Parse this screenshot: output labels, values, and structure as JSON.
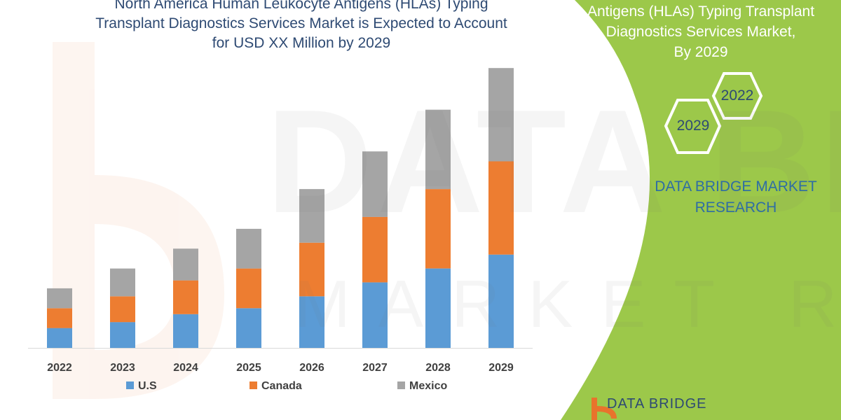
{
  "title_lines": [
    "North America Human Leukocyte Antigens (HLAs) Typing",
    "Transplant Diagnostics Services Market is Expected to Account",
    "for USD XX Million by 2029"
  ],
  "panel": {
    "title_lines": [
      "Antigens (HLAs) Typing Transplant",
      "Diagnostics Services Market,",
      "By 2029"
    ],
    "hex_left_label": "2029",
    "hex_right_label": "2022",
    "brand_lines": [
      "DATA BRIDGE MARKET",
      "RESEARCH"
    ],
    "footer_logo_text": "DATA BRIDGE",
    "colors": {
      "panel": "#9cc84a",
      "hex_outline": "#ffffff"
    }
  },
  "watermark": {
    "main": "DATA BRIDGE",
    "sub": "MARKET RESEARCH"
  },
  "chart_data": {
    "type": "bar",
    "stacked": true,
    "categories": [
      "2022",
      "2023",
      "2024",
      "2025",
      "2026",
      "2027",
      "2028",
      "2029"
    ],
    "series": [
      {
        "name": "U.S",
        "color": "#5b9bd5",
        "values": [
          10,
          13,
          17,
          20,
          26,
          33,
          40,
          47
        ]
      },
      {
        "name": "Canada",
        "color": "#ed7d31",
        "values": [
          10,
          13,
          17,
          20,
          27,
          33,
          40,
          47
        ]
      },
      {
        "name": "Mexico",
        "color": "#a5a5a5",
        "values": [
          10,
          14,
          16,
          20,
          27,
          33,
          40,
          47
        ]
      }
    ],
    "ylim": [
      0,
      140
    ],
    "grid": false,
    "legend": "bottom"
  }
}
